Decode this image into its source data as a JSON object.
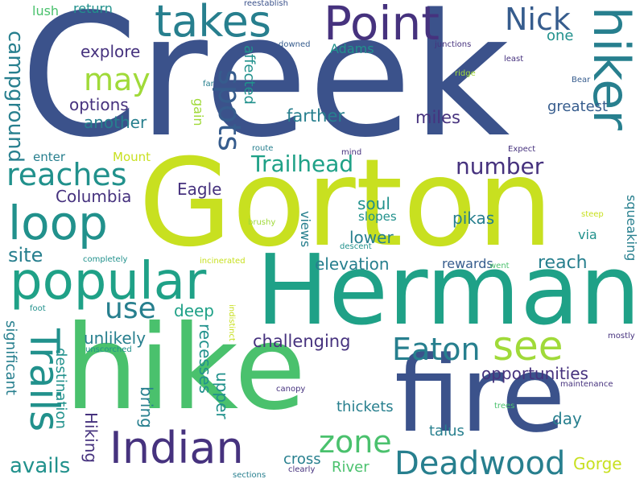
{
  "colors": {
    "background": "#ffffff",
    "palette": [
      "#46327e",
      "#3b528b",
      "#365c8d",
      "#277f8e",
      "#21918c",
      "#1fa187",
      "#4ac16d",
      "#a0da39",
      "#c8e020"
    ]
  },
  "words": {
    "creek": "Creek",
    "gorton": "Gorton",
    "herman": "Herman",
    "hike": "hike",
    "fire": "fire",
    "popular": "popular",
    "hiker": "hiker",
    "point": "Point",
    "takes": "takes",
    "loop": "loop",
    "indian": "Indian",
    "see": "see",
    "trails": "Trails",
    "deadwood": "Deadwood",
    "eaton": "Eaton",
    "nick": "Nick",
    "spots": "spots",
    "may": "may",
    "reaches": "reaches",
    "zone": "zone",
    "use": "use",
    "campground": "campground",
    "trailhead": "Trailhead",
    "number": "number",
    "avails": "avails",
    "opportunities": "opportunities",
    "challenging": "challenging",
    "explore": "explore",
    "options": "options",
    "another": "another",
    "columbia": "Columbia",
    "site": "site",
    "eagle": "Eagle",
    "farther": "farther",
    "miles": "miles",
    "greatest": "greatest",
    "elevation": "elevation",
    "reach": "reach",
    "soul": "soul",
    "lower": "lower",
    "pikas": "pikas",
    "unlikely": "unlikely",
    "deep": "deep",
    "recesses": "recesses",
    "upper": "upper",
    "bring": "bring",
    "hiking": "Hiking",
    "destination": "destination",
    "significant": "significant",
    "thickets": "thickets",
    "day": "day",
    "talus": "talus",
    "gorge": "Gorge",
    "river": "River",
    "cross": "cross",
    "affected": "affected",
    "gain": "gain",
    "squeaking": "squeaking",
    "adams": "Adams",
    "one": "one",
    "return": "return",
    "lush": "lush",
    "mount": "Mount",
    "enter": "enter",
    "views": "views",
    "slopes": "slopes",
    "via": "via",
    "rewards": "rewards",
    "reestablish": "reestablish",
    "downed": "downed",
    "junctions": "junctions",
    "least": "least",
    "ridge": "ridge",
    "far": "far",
    "bear": "Bear",
    "route": "route",
    "mind": "mind",
    "expect": "Expect",
    "brushy": "brushy",
    "descent": "descent",
    "steep": "steep",
    "completely": "completely",
    "incinerated": "incinerated",
    "went": "went",
    "foot": "foot",
    "indistinct": "indistinct",
    "mostly": "mostly",
    "unscorched": "unscorched",
    "canopy": "canopy",
    "maintenance": "maintenance",
    "trees": "trees",
    "clearly": "clearly",
    "sections": "sections"
  }
}
